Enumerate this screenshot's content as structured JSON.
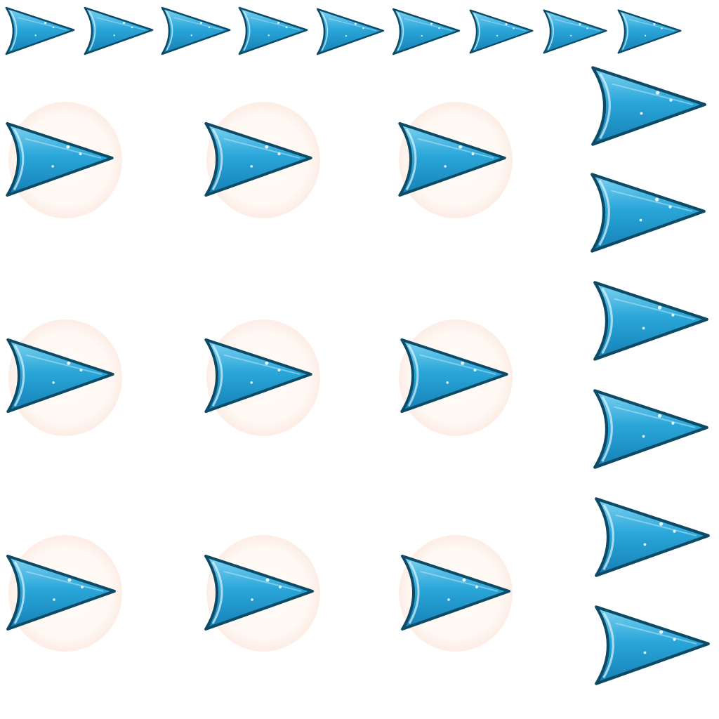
{
  "sheet": {
    "background": "#ffffff",
    "icon": "play-arrow-icon",
    "arrow_fill": "#2aa6d9",
    "arrow_highlight": "#7fd3f2",
    "arrow_edge": "#0d4a66",
    "glow_tint": "#f0a080"
  },
  "rows": [
    {
      "name": "small-arrow-row",
      "count": 9
    },
    {
      "name": "glow-arrow-row-1",
      "count": 3
    },
    {
      "name": "glow-arrow-row-2",
      "count": 3
    },
    {
      "name": "glow-arrow-row-3",
      "count": 3
    },
    {
      "name": "large-arrow-column",
      "count": 6
    }
  ]
}
